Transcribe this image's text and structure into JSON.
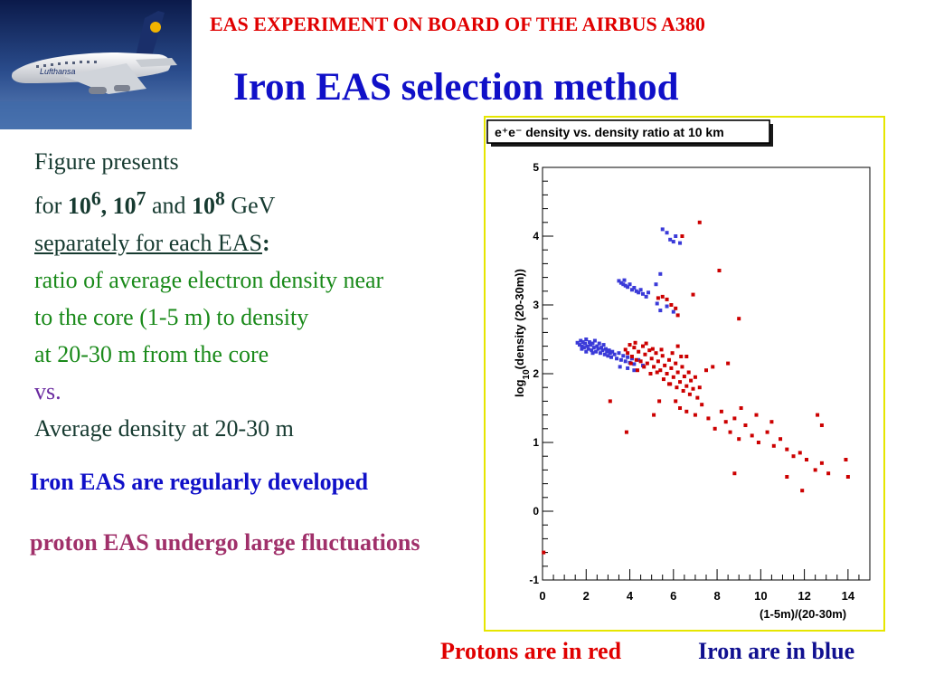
{
  "header": {
    "banner": "EAS EXPERIMENT ON BOARD OF THE AIRBUS A380",
    "title": "Iron EAS selection method"
  },
  "photo": {
    "livery_text": "Lufthansa"
  },
  "description": {
    "line1": "Figure presents",
    "line2_prefix": "for ",
    "e6_base": "10",
    "e6_exp": "6",
    "sep1": ", ",
    "e7_base": "10",
    "e7_exp": "7",
    "and": " and ",
    "e8_base": "10",
    "e8_exp": "8",
    "unit": " GeV",
    "line3": "separately for each EAS",
    "line3_colon": ":",
    "line4": "ratio of average electron density near",
    "line5": "to the core (1-5 m) to density",
    "line6": "at 20-30 m from the core",
    "line7": "vs.",
    "line8": "Average density at 20-30 m"
  },
  "notes": {
    "iron": "Iron EAS are regularly developed",
    "proton": "proton EAS undergo large fluctuations"
  },
  "legend": {
    "protons": "Protons are in red",
    "iron": "Iron are in blue"
  },
  "colors": {
    "proton": "#cc0000",
    "iron": "#3a3ad8",
    "banner": "#e00000",
    "title": "#1010c8",
    "frame": "#e6e600"
  },
  "chart_data": {
    "type": "scatter",
    "title": "e⁺e⁻ density vs. density ratio at 10 km",
    "xlabel": "(1-5m)/(20-30m)",
    "ylabel": "log10(density (20-30m))",
    "xlim": [
      0,
      15
    ],
    "ylim": [
      -1,
      5
    ],
    "xticks": [
      0,
      2,
      4,
      6,
      8,
      10,
      12,
      14
    ],
    "yticks": [
      -1,
      0,
      1,
      2,
      3,
      4,
      5
    ],
    "series": [
      {
        "name": "Iron",
        "color": "#3a3ad8",
        "points": [
          [
            1.6,
            2.45
          ],
          [
            1.7,
            2.42
          ],
          [
            1.75,
            2.48
          ],
          [
            1.8,
            2.4
          ],
          [
            1.85,
            2.46
          ],
          [
            1.9,
            2.38
          ],
          [
            1.95,
            2.44
          ],
          [
            2.0,
            2.5
          ],
          [
            2.05,
            2.4
          ],
          [
            2.1,
            2.36
          ],
          [
            2.15,
            2.46
          ],
          [
            2.2,
            2.42
          ],
          [
            2.25,
            2.34
          ],
          [
            2.3,
            2.44
          ],
          [
            2.35,
            2.38
          ],
          [
            2.4,
            2.48
          ],
          [
            2.45,
            2.32
          ],
          [
            2.5,
            2.4
          ],
          [
            2.55,
            2.36
          ],
          [
            2.6,
            2.44
          ],
          [
            2.65,
            2.3
          ],
          [
            2.7,
            2.38
          ],
          [
            2.75,
            2.34
          ],
          [
            2.8,
            2.42
          ],
          [
            2.85,
            2.28
          ],
          [
            2.9,
            2.36
          ],
          [
            2.95,
            2.32
          ],
          [
            3.0,
            2.26
          ],
          [
            3.05,
            2.34
          ],
          [
            3.1,
            2.3
          ],
          [
            3.15,
            2.24
          ],
          [
            3.2,
            2.32
          ],
          [
            3.3,
            2.28
          ],
          [
            3.4,
            2.22
          ],
          [
            3.5,
            2.3
          ],
          [
            3.6,
            2.2
          ],
          [
            3.7,
            2.26
          ],
          [
            3.8,
            2.18
          ],
          [
            3.9,
            2.24
          ],
          [
            4.0,
            2.16
          ],
          [
            4.1,
            2.22
          ],
          [
            4.2,
            2.14
          ],
          [
            4.4,
            2.2
          ],
          [
            4.6,
            2.12
          ],
          [
            3.55,
            2.1
          ],
          [
            3.9,
            2.08
          ],
          [
            4.2,
            2.05
          ],
          [
            1.8,
            2.36
          ],
          [
            2.0,
            2.32
          ],
          [
            2.3,
            2.3
          ],
          [
            3.5,
            3.35
          ],
          [
            3.6,
            3.32
          ],
          [
            3.7,
            3.3
          ],
          [
            3.75,
            3.36
          ],
          [
            3.8,
            3.28
          ],
          [
            3.9,
            3.26
          ],
          [
            4.0,
            3.3
          ],
          [
            4.1,
            3.22
          ],
          [
            4.2,
            3.25
          ],
          [
            4.3,
            3.2
          ],
          [
            4.4,
            3.18
          ],
          [
            4.5,
            3.22
          ],
          [
            4.6,
            3.16
          ],
          [
            4.75,
            3.12
          ],
          [
            4.85,
            3.18
          ],
          [
            5.25,
            3.02
          ],
          [
            5.4,
            2.92
          ],
          [
            5.7,
            2.98
          ],
          [
            6.0,
            2.9
          ],
          [
            5.2,
            3.3
          ],
          [
            5.4,
            3.45
          ],
          [
            5.5,
            4.1
          ],
          [
            5.7,
            4.05
          ],
          [
            5.85,
            3.95
          ],
          [
            6.0,
            3.92
          ],
          [
            6.1,
            4.0
          ],
          [
            6.3,
            3.9
          ]
        ]
      },
      {
        "name": "Protons",
        "color": "#cc0000",
        "points": [
          [
            3.8,
            2.35
          ],
          [
            3.9,
            2.3
          ],
          [
            4.0,
            2.42
          ],
          [
            4.1,
            2.25
          ],
          [
            4.2,
            2.38
          ],
          [
            4.3,
            2.2
          ],
          [
            4.4,
            2.32
          ],
          [
            4.5,
            2.18
          ],
          [
            4.6,
            2.4
          ],
          [
            4.7,
            2.28
          ],
          [
            4.8,
            2.15
          ],
          [
            4.9,
            2.34
          ],
          [
            5.0,
            2.22
          ],
          [
            5.1,
            2.1
          ],
          [
            5.2,
            2.3
          ],
          [
            5.3,
            2.18
          ],
          [
            5.4,
            2.05
          ],
          [
            5.5,
            2.26
          ],
          [
            5.6,
            2.12
          ],
          [
            5.7,
            2.0
          ],
          [
            5.8,
            2.2
          ],
          [
            5.9,
            2.08
          ],
          [
            6.0,
            1.95
          ],
          [
            6.1,
            2.15
          ],
          [
            6.2,
            2.02
          ],
          [
            6.3,
            1.88
          ],
          [
            6.4,
            2.1
          ],
          [
            6.5,
            1.96
          ],
          [
            6.6,
            1.82
          ],
          [
            6.7,
            2.02
          ],
          [
            6.8,
            1.9
          ],
          [
            6.9,
            1.78
          ],
          [
            7.0,
            1.95
          ],
          [
            4.05,
            2.15
          ],
          [
            4.35,
            2.05
          ],
          [
            4.65,
            2.1
          ],
          [
            4.95,
            2.0
          ],
          [
            5.25,
            2.02
          ],
          [
            5.55,
            1.92
          ],
          [
            5.85,
            1.85
          ],
          [
            6.15,
            1.8
          ],
          [
            6.45,
            1.75
          ],
          [
            6.75,
            1.7
          ],
          [
            7.1,
            1.65
          ],
          [
            4.25,
            2.45
          ],
          [
            4.75,
            2.44
          ],
          [
            5.05,
            2.36
          ],
          [
            5.45,
            2.35
          ],
          [
            5.95,
            2.3
          ],
          [
            6.35,
            2.25
          ],
          [
            6.1,
            1.6
          ],
          [
            6.3,
            1.5
          ],
          [
            6.6,
            1.45
          ],
          [
            7.0,
            1.4
          ],
          [
            7.3,
            1.55
          ],
          [
            7.6,
            1.35
          ],
          [
            7.9,
            1.2
          ],
          [
            8.2,
            1.45
          ],
          [
            8.4,
            1.3
          ],
          [
            8.6,
            1.15
          ],
          [
            8.8,
            1.35
          ],
          [
            9.0,
            1.05
          ],
          [
            9.3,
            1.25
          ],
          [
            9.6,
            1.1
          ],
          [
            9.9,
            1.0
          ],
          [
            10.3,
            1.15
          ],
          [
            10.6,
            0.95
          ],
          [
            10.9,
            1.05
          ],
          [
            11.2,
            0.9
          ],
          [
            11.5,
            0.8
          ],
          [
            11.8,
            0.85
          ],
          [
            12.1,
            0.75
          ],
          [
            12.5,
            0.6
          ],
          [
            12.8,
            0.7
          ],
          [
            13.1,
            0.55
          ],
          [
            13.9,
            0.75
          ],
          [
            14.0,
            0.5
          ],
          [
            11.9,
            0.3
          ],
          [
            11.2,
            0.5
          ],
          [
            8.8,
            0.55
          ],
          [
            12.6,
            1.4
          ],
          [
            12.8,
            1.25
          ],
          [
            7.8,
            2.1
          ],
          [
            8.5,
            2.15
          ],
          [
            7.2,
            1.8
          ],
          [
            7.5,
            2.05
          ],
          [
            9.1,
            1.5
          ],
          [
            9.8,
            1.4
          ],
          [
            10.5,
            1.3
          ],
          [
            3.1,
            1.6
          ],
          [
            3.85,
            1.15
          ],
          [
            5.1,
            1.4
          ],
          [
            5.35,
            1.6
          ],
          [
            5.8,
            1.85
          ],
          [
            6.6,
            2.25
          ],
          [
            6.2,
            2.4
          ],
          [
            5.3,
            3.1
          ],
          [
            5.5,
            3.12
          ],
          [
            5.7,
            3.08
          ],
          [
            5.9,
            3.0
          ],
          [
            6.1,
            2.95
          ],
          [
            6.2,
            2.85
          ],
          [
            6.9,
            3.15
          ],
          [
            9.0,
            2.8
          ],
          [
            8.1,
            3.5
          ],
          [
            7.2,
            4.2
          ],
          [
            6.4,
            4.0
          ],
          [
            0.05,
            -0.6
          ]
        ]
      }
    ]
  }
}
